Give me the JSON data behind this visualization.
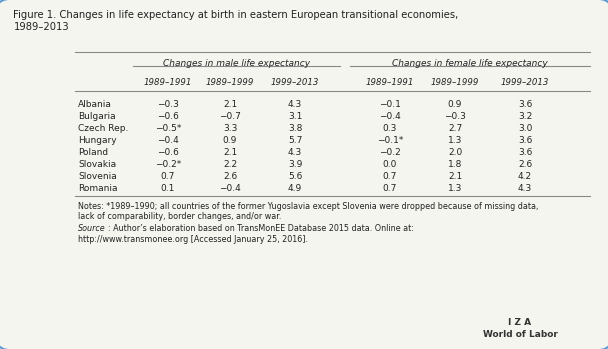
{
  "title": "Figure 1. Changes in life expectancy at birth in eastern European transitional economies,\n1989–2013",
  "col_group1_label": "Changes in male life expectancy",
  "col_group2_label": "Changes in female life expectancy",
  "col_headers": [
    "1989–1991",
    "1989–1999",
    "1999–2013",
    "1989–1991",
    "1989–1999",
    "1999–2013"
  ],
  "row_labels": [
    "Albania",
    "Bulgaria",
    "Czech Rep.",
    "Hungary",
    "Poland",
    "Slovakia",
    "Slovenia",
    "Romania"
  ],
  "data": [
    [
      "−0.3",
      "2.1",
      "4.3",
      "−0.1",
      "0.9",
      "3.6"
    ],
    [
      "−0.6",
      "−0.7",
      "3.1",
      "−0.4",
      "−0.3",
      "3.2"
    ],
    [
      "−0.5*",
      "3.3",
      "3.8",
      "0.3",
      "2.7",
      "3.0"
    ],
    [
      "−0.4",
      "0.9",
      "5.7",
      "−0.1*",
      "1.3",
      "3.6"
    ],
    [
      "−0.6",
      "2.1",
      "4.3",
      "−0.2",
      "2.0",
      "3.6"
    ],
    [
      "−0.2*",
      "2.2",
      "3.9",
      "0.0",
      "1.8",
      "2.6"
    ],
    [
      "0.7",
      "2.6",
      "5.6",
      "0.7",
      "2.1",
      "4.2"
    ],
    [
      "0.1",
      "−0.4",
      "4.9",
      "0.7",
      "1.3",
      "4.3"
    ]
  ],
  "notes": "Notes: *1989–1990; all countries of the former Yugoslavia except Slovenia were dropped because of missing data,\nlack of comparability, border changes, and/or war.",
  "source": "Source: Author’s elaboration based on TransMonEE Database 2015 data. Online at:\nhttp://www.transmonee.org [Accessed January 25, 2016].",
  "iza_label": "I Z A\nWorld of Labor",
  "bg_color": "#f5f5f0",
  "border_color": "#5b9bd5",
  "text_color": "#222222",
  "line_color": "#888888"
}
